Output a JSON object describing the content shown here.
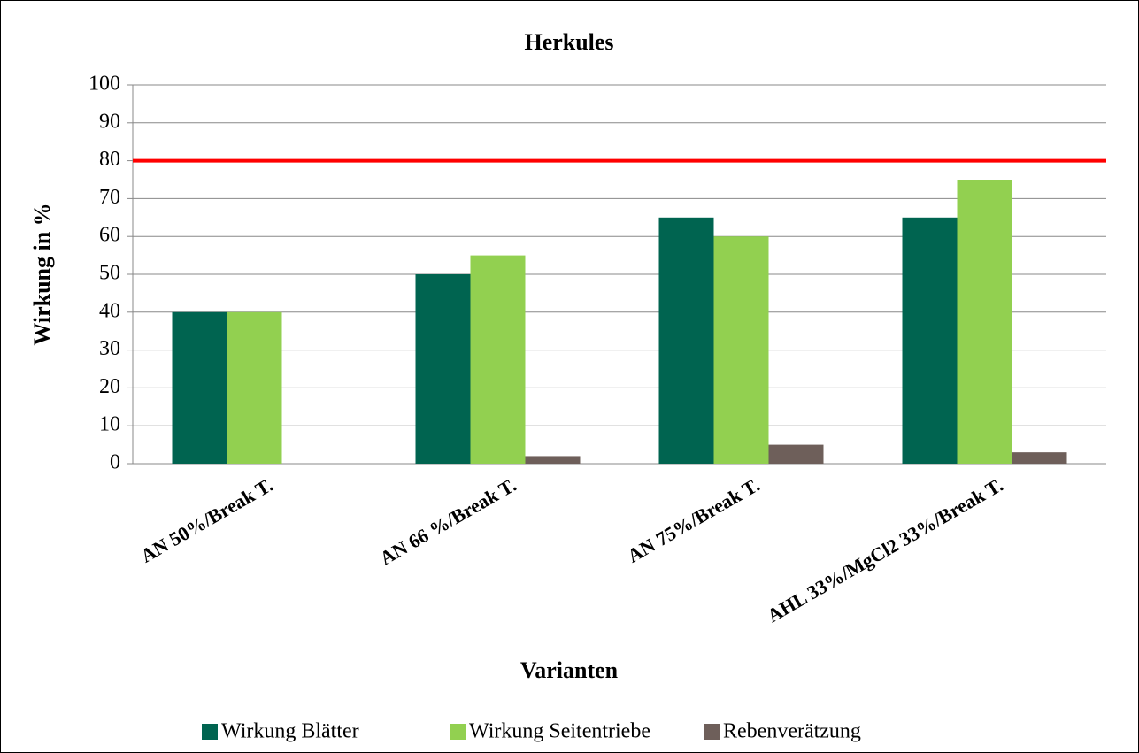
{
  "chart_data": {
    "type": "bar",
    "title": "Herkules",
    "x_label": "Varianten",
    "y_label": "Wirkung in %",
    "categories": [
      "AN 50%/Break T.",
      "AN 66 %/Break T.",
      "AN 75%/Break T.",
      "AHL 33%/MgCl2 33%/Break T."
    ],
    "series": [
      {
        "name": "Wirkung Blätter",
        "color": "#006450",
        "values": [
          40,
          50,
          65,
          65
        ]
      },
      {
        "name": "Wirkung Seitentriebe",
        "color": "#92d050",
        "values": [
          40,
          55,
          60,
          75
        ]
      },
      {
        "name": "Rebenverätzung",
        "color": "#6e5f5a",
        "values": [
          0,
          2,
          5,
          3
        ]
      }
    ],
    "reference_line": {
      "value": 80,
      "color": "#ff0000"
    },
    "ylim": [
      0,
      100
    ],
    "yticks": [
      0,
      10,
      20,
      30,
      40,
      50,
      60,
      70,
      80,
      90,
      100
    ],
    "grid": true,
    "legend": "bottom"
  }
}
